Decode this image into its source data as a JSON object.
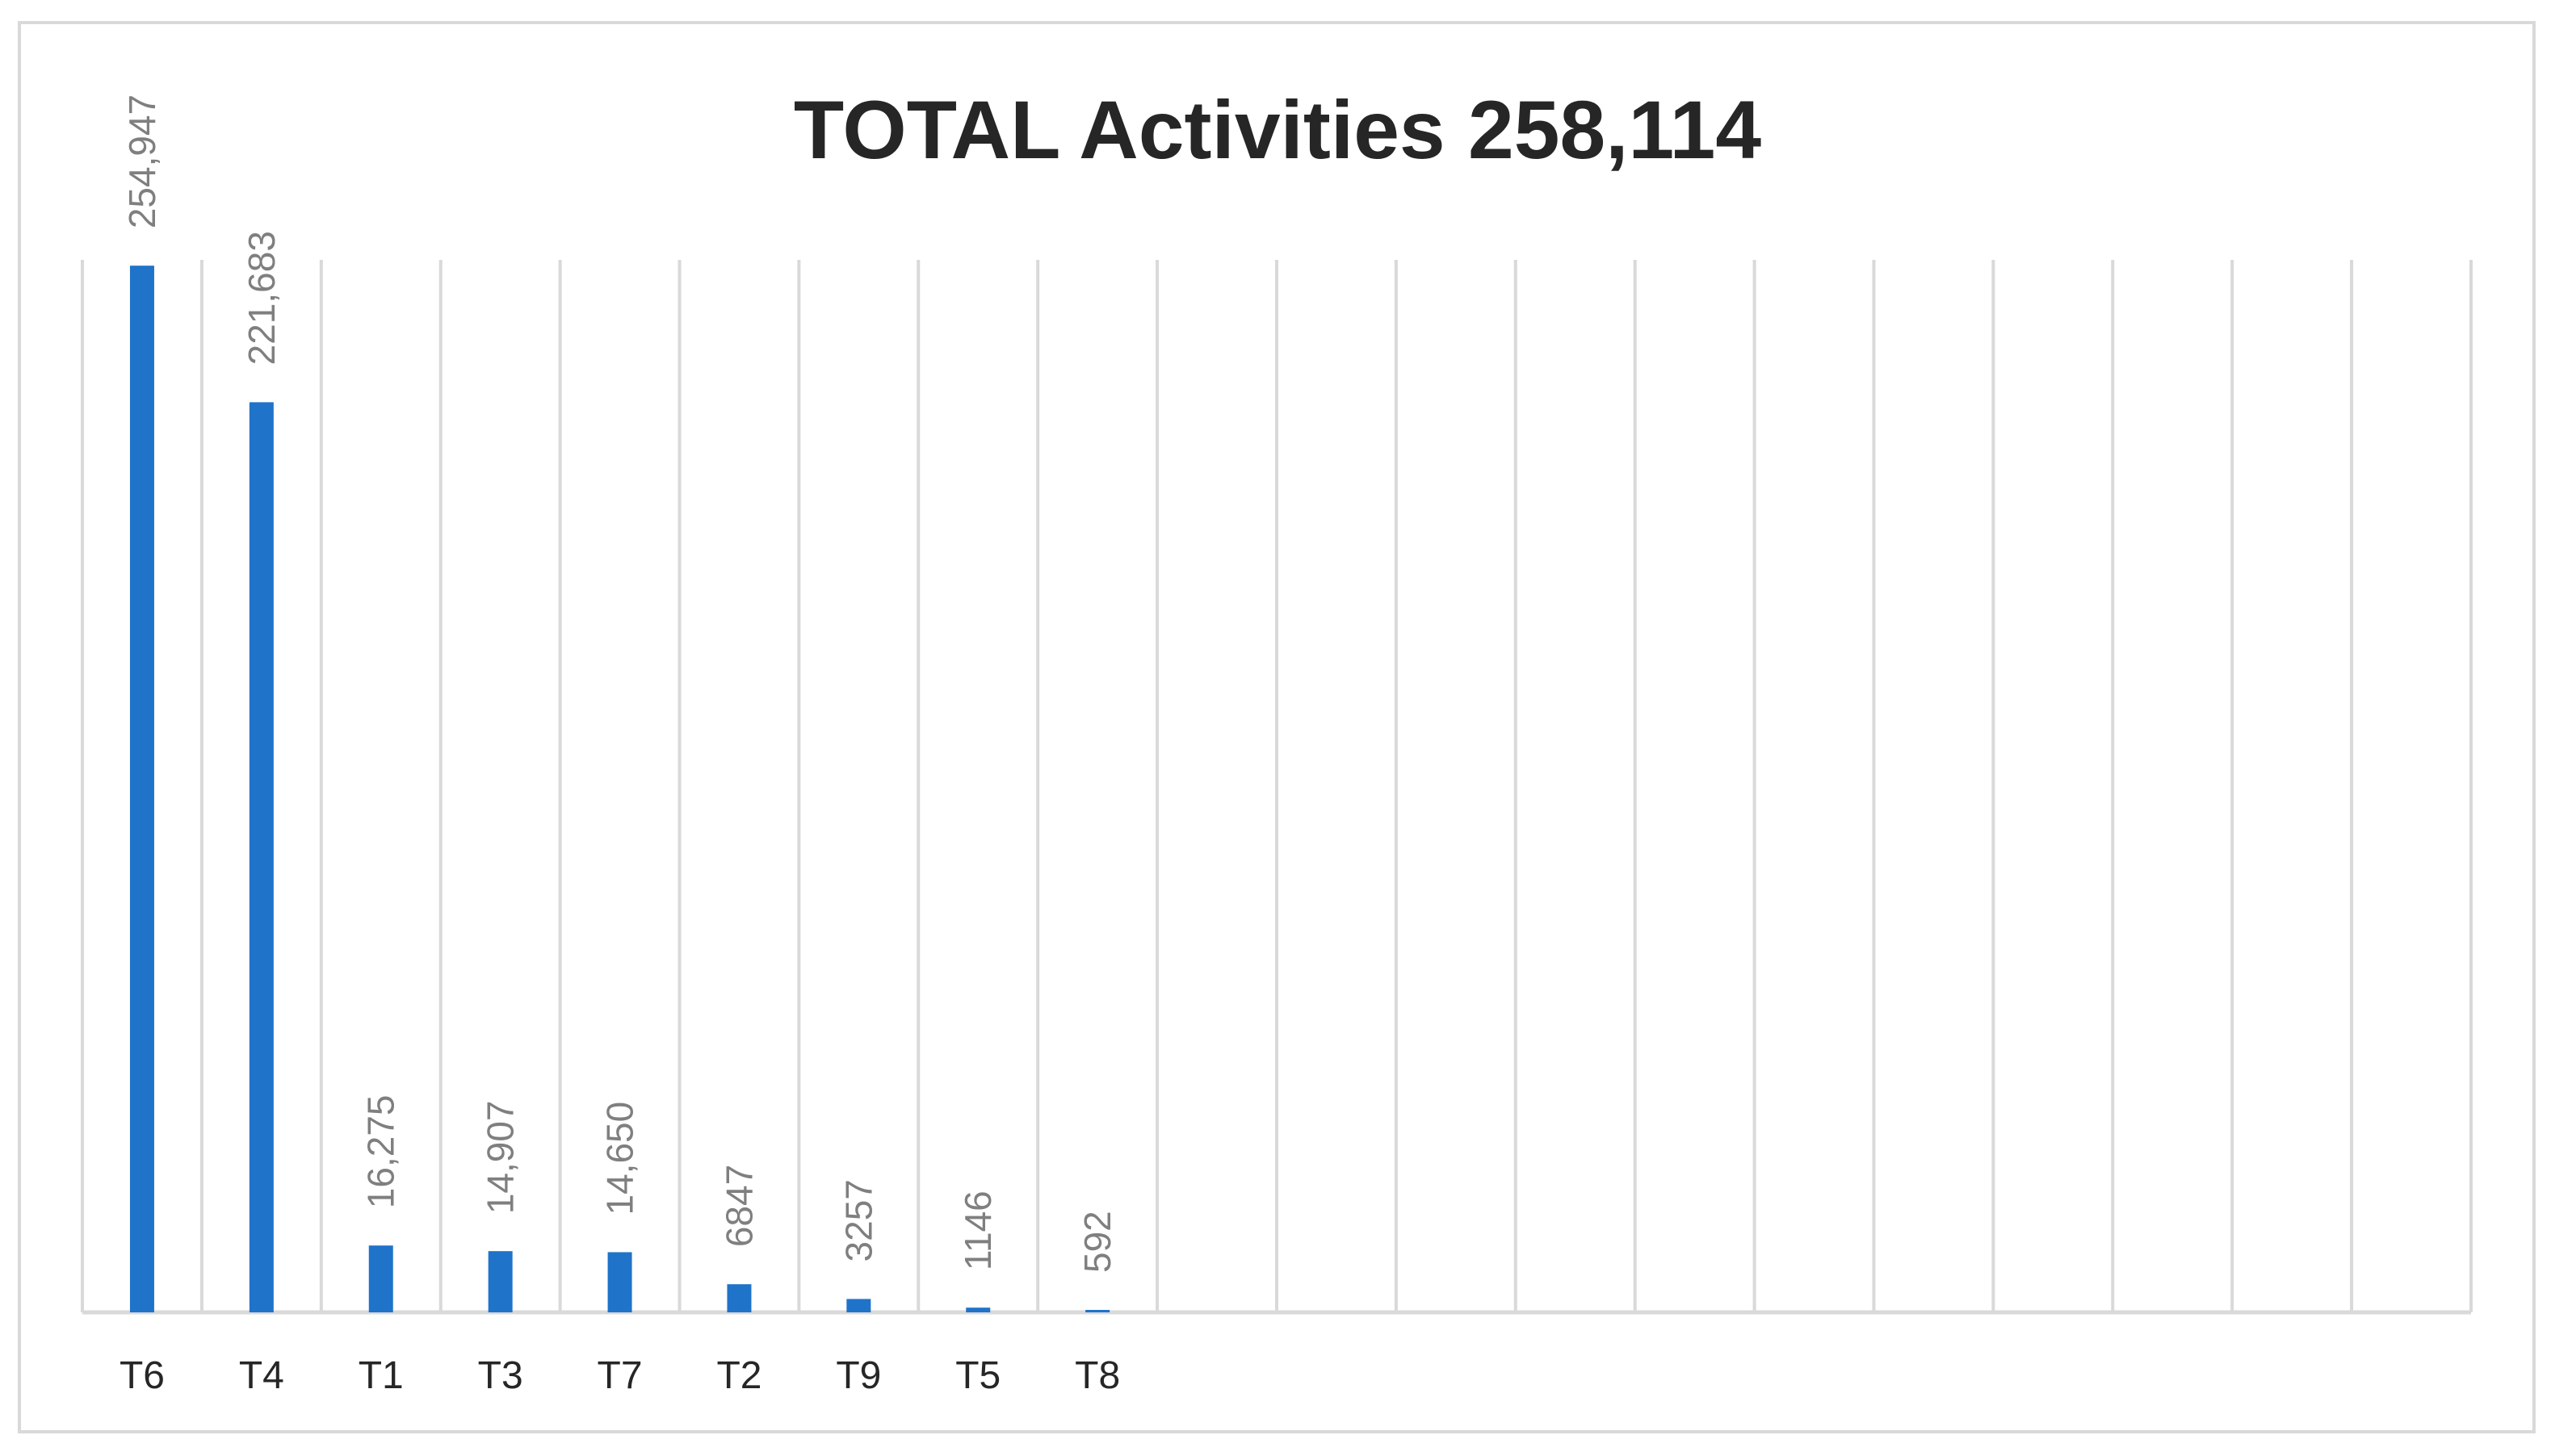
{
  "chart_data": {
    "type": "bar",
    "title": "TOTAL Activities 258,114",
    "xlabel": "",
    "ylabel": "",
    "categories": [
      "T6",
      "T4",
      "T1",
      "T3",
      "T7",
      "T2",
      "T9",
      "T5",
      "T8",
      "",
      "",
      "",
      "",
      "",
      "",
      "",
      "",
      "",
      "",
      ""
    ],
    "values": [
      254947,
      221683,
      16275,
      14907,
      14650,
      6847,
      3257,
      1146,
      592,
      null,
      null,
      null,
      null,
      null,
      null,
      null,
      null,
      null,
      null,
      null
    ],
    "data_labels": [
      "254,947",
      "221,683",
      "16,275",
      "14,907",
      "14,650",
      "6847",
      "3257",
      "1146",
      "592",
      "",
      "",
      "",
      "",
      "",
      "",
      "",
      "",
      "",
      "",
      ""
    ],
    "ylim": [
      0,
      300000
    ],
    "grid": "vertical category gridlines",
    "legend": "none",
    "colors": {
      "bar": "#1f73c9",
      "grid": "#d9d9d9",
      "title": "#262626",
      "category_label": "#262626",
      "data_label": "#7f7f7f"
    }
  }
}
